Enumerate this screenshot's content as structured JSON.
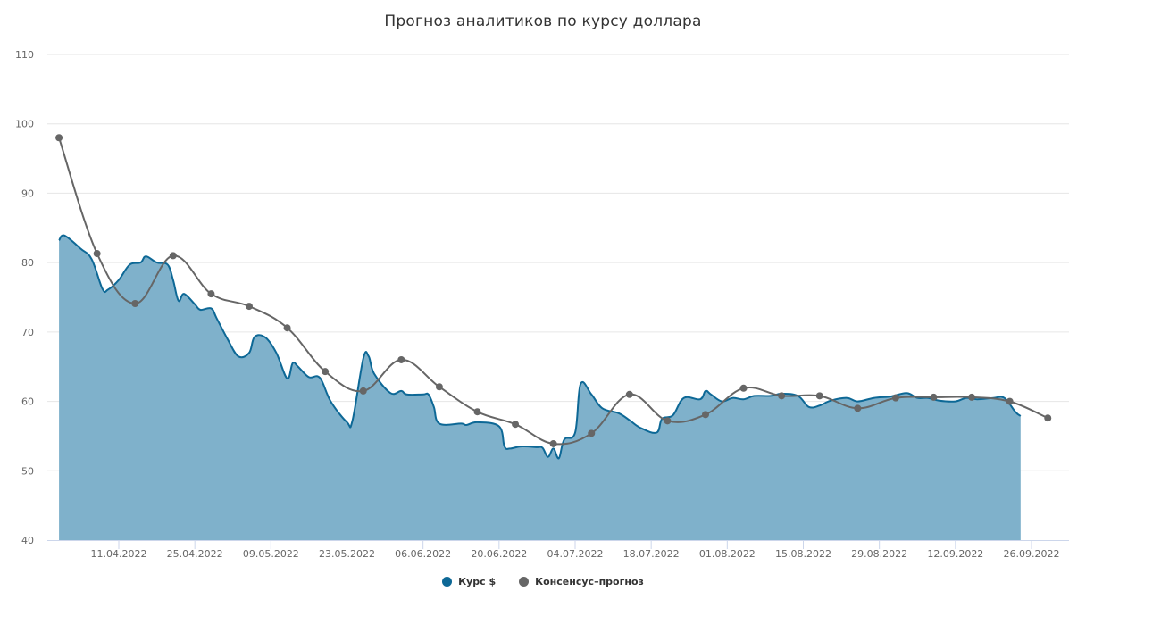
{
  "title": "Прогноз аналитиков по курсу доллара",
  "legend": [
    {
      "label": "Курс $",
      "color": "#0d6896"
    },
    {
      "label": "Консенсус–прогноз",
      "color": "#666666"
    }
  ],
  "colors": {
    "area_fill": "#7fb1cb",
    "area_line": "#0d6896",
    "forecast_line": "#666666",
    "grid": "#e6e6e6",
    "axis": "#ccd6eb"
  },
  "chart_data": {
    "type": "area",
    "title": "Прогноз аналитиков по курсу доллара",
    "xlabel": "",
    "ylabel": "",
    "ylim": [
      40,
      110
    ],
    "yticks": [
      40,
      50,
      60,
      70,
      80,
      90,
      100,
      110
    ],
    "xticks": [
      "11.04.2022",
      "25.04.2022",
      "09.05.2022",
      "23.05.2022",
      "06.06.2022",
      "20.06.2022",
      "04.07.2022",
      "18.07.2022",
      "01.08.2022",
      "15.08.2022",
      "29.08.2022",
      "12.09.2022",
      "26.09.2022"
    ],
    "grid": true,
    "legend_position": "bottom",
    "series": [
      {
        "name": "Курс $",
        "type": "area",
        "x": [
          "31.03.2022",
          "01.04.2022",
          "04.04.2022",
          "06.04.2022",
          "08.04.2022",
          "09.04.2022",
          "11.04.2022",
          "13.04.2022",
          "15.04.2022",
          "16.04.2022",
          "18.04.2022",
          "20.04.2022",
          "21.04.2022",
          "22.04.2022",
          "23.04.2022",
          "25.04.2022",
          "26.04.2022",
          "28.04.2022",
          "29.04.2022",
          "01.05.2022",
          "03.05.2022",
          "05.05.2022",
          "06.05.2022",
          "08.05.2022",
          "10.05.2022",
          "12.05.2022",
          "13.05.2022",
          "14.05.2022",
          "16.05.2022",
          "18.05.2022",
          "20.05.2022",
          "23.05.2022",
          "24.05.2022",
          "26.05.2022",
          "27.05.2022",
          "28.05.2022",
          "31.05.2022",
          "02.06.2022",
          "03.06.2022",
          "06.06.2022",
          "07.06.2022",
          "08.06.2022",
          "09.06.2022",
          "13.06.2022",
          "14.06.2022",
          "16.06.2022",
          "20.06.2022",
          "21.06.2022",
          "22.06.2022",
          "24.06.2022",
          "27.06.2022",
          "28.06.2022",
          "29.06.2022",
          "30.06.2022",
          "01.07.2022",
          "02.07.2022",
          "04.07.2022",
          "05.07.2022",
          "07.07.2022",
          "09.07.2022",
          "12.07.2022",
          "14.07.2022",
          "16.07.2022",
          "19.07.2022",
          "20.07.2022",
          "22.07.2022",
          "24.07.2022",
          "27.07.2022",
          "28.07.2022",
          "29.07.2022",
          "31.07.2022",
          "02.08.2022",
          "04.08.2022",
          "06.08.2022",
          "09.08.2022",
          "11.08.2022",
          "14.08.2022",
          "16.08.2022",
          "18.08.2022",
          "20.08.2022",
          "23.08.2022",
          "25.08.2022",
          "28.08.2022",
          "31.08.2022",
          "03.09.2022",
          "05.09.2022",
          "07.09.2022",
          "09.09.2022",
          "12.09.2022",
          "14.09.2022",
          "16.09.2022",
          "19.09.2022",
          "21.09.2022",
          "23.09.2022",
          "24.09.2022"
        ],
        "values": [
          83.2,
          83.9,
          82.0,
          80.5,
          76.2,
          76.1,
          77.5,
          79.7,
          80.0,
          80.9,
          80.0,
          79.7,
          77.5,
          74.5,
          75.5,
          74.0,
          73.2,
          73.4,
          72.0,
          69.0,
          66.5,
          67.0,
          69.3,
          69.2,
          67.0,
          63.3,
          65.5,
          65.0,
          63.5,
          63.4,
          60.0,
          57.0,
          57.2,
          66.2,
          66.5,
          64.0,
          61.2,
          61.5,
          61.0,
          61.0,
          61.0,
          59.2,
          56.8,
          56.8,
          56.6,
          57.0,
          56.4,
          53.5,
          53.2,
          53.5,
          53.4,
          53.3,
          52.0,
          53.2,
          51.8,
          54.5,
          55.5,
          62.5,
          61.0,
          59.0,
          58.3,
          57.3,
          56.2,
          55.5,
          57.5,
          58.0,
          60.5,
          60.3,
          61.5,
          61.0,
          60.0,
          60.5,
          60.3,
          60.8,
          60.8,
          61.1,
          60.8,
          59.2,
          59.4,
          60.1,
          60.5,
          60.0,
          60.5,
          60.7,
          61.2,
          60.5,
          60.5,
          60.1,
          60.0,
          60.5,
          60.3,
          60.5,
          60.5,
          58.5,
          57.9
        ]
      },
      {
        "name": "Консенсус–прогноз",
        "type": "spline",
        "x": [
          "31.03.2022",
          "07.04.2022",
          "14.04.2022",
          "21.04.2022",
          "28.04.2022",
          "05.05.2022",
          "12.05.2022",
          "19.05.2022",
          "26.05.2022",
          "02.06.2022",
          "09.06.2022",
          "16.06.2022",
          "23.06.2022",
          "30.06.2022",
          "07.07.2022",
          "14.07.2022",
          "21.07.2022",
          "28.07.2022",
          "04.08.2022",
          "11.08.2022",
          "18.08.2022",
          "25.08.2022",
          "01.09.2022",
          "08.09.2022",
          "15.09.2022",
          "22.09.2022",
          "29.09.2022"
        ],
        "values": [
          98.0,
          81.3,
          74.1,
          81.0,
          75.5,
          73.7,
          70.6,
          64.3,
          61.5,
          66.0,
          62.1,
          58.5,
          56.7,
          53.9,
          55.4,
          61.0,
          57.2,
          58.1,
          61.9,
          60.8,
          60.8,
          59.0,
          60.5,
          60.6,
          60.6,
          60.0,
          57.6
        ]
      }
    ]
  }
}
